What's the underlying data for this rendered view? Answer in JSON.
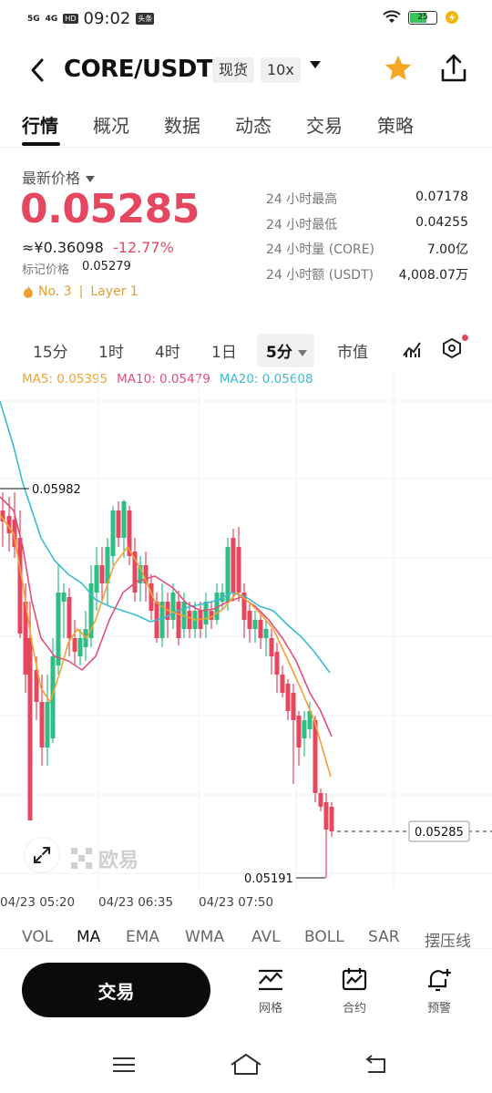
{
  "status_bar": {
    "signal1": "5G",
    "signal2": "4G",
    "hd_badge": "HD",
    "time": "09:02",
    "app_badge": "头条",
    "battery": "25"
  },
  "header": {
    "pair": "CORE/USDT",
    "spot_tag": "现货",
    "leverage_tag": "10x"
  },
  "tabs": [
    "行情",
    "概况",
    "数据",
    "动态",
    "交易",
    "策略"
  ],
  "price": {
    "label": "最新价格",
    "last": "0.05285",
    "cny": "≈¥0.36098",
    "change": "-12.77%",
    "mark_label": "标记价格",
    "mark_value": "0.05279",
    "rank": "No. 3",
    "separator": "|",
    "category": "Layer 1"
  },
  "stats": [
    {
      "label": "24 小时最高",
      "value": "0.07178"
    },
    {
      "label": "24 小时最低",
      "value": "0.04255"
    },
    {
      "label": "24 小时量 (CORE)",
      "value": "7.00亿"
    },
    {
      "label": "24 小时额 (USDT)",
      "value": "4,008.07万"
    }
  ],
  "intervals": [
    "15分",
    "1时",
    "4时",
    "1日",
    "5分",
    "市值"
  ],
  "active_interval": "5分",
  "ma_legend": {
    "ma5": "MA5: 0.05395",
    "ma10": "MA10: 0.05479",
    "ma20": "MA20: 0.05608"
  },
  "colors": {
    "up": "#2ebd85",
    "down": "#e5475e",
    "ma5": "#f0a330",
    "ma10": "#e0507a",
    "ma20": "#3bbcd0"
  },
  "chart_data": {
    "type": "candlestick",
    "x_labels": [
      "04/23 05:20",
      "04/23 06:35",
      "04/23 07:50"
    ],
    "high_marker": "0.05982",
    "low_marker": "0.05191",
    "current_price": "0.05285",
    "watermark": "欧易"
  },
  "indicators": [
    "VOL",
    "MA",
    "EMA",
    "WMA",
    "AVL",
    "BOLL",
    "SAR",
    "摆压线"
  ],
  "bottom_bar": {
    "trade": "交易",
    "grid": "网格",
    "contract": "合约",
    "alert": "预警"
  }
}
